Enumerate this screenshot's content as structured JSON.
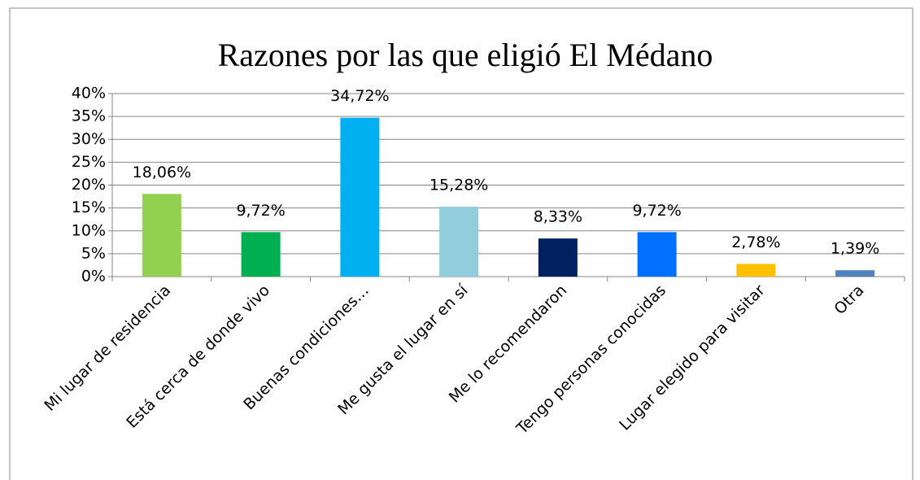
{
  "chart_data": {
    "type": "bar",
    "title": "Razones por las que eligió El Médano",
    "categories": [
      "Mi lugar de residencia",
      "Está cerca de donde vivo",
      "Buenas condiciones…",
      "Me gusta el lugar en sí",
      "Me lo recomendaron",
      "Tengo personas conocidas",
      "Lugar elegido para visitar",
      "Otra"
    ],
    "values": [
      18.06,
      9.72,
      34.72,
      15.28,
      8.33,
      9.72,
      2.78,
      1.39
    ],
    "value_labels": [
      "18,06%",
      "9,72%",
      "34,72%",
      "15,28%",
      "8,33%",
      "9,72%",
      "2,78%",
      "1,39%"
    ],
    "colors": [
      "#92d050",
      "#00b050",
      "#00b0f0",
      "#92cddc",
      "#002060",
      "#0070ff",
      "#ffc000",
      "#4f81bd"
    ],
    "ylim": [
      0,
      40
    ],
    "yticks": [
      {
        "value": 0,
        "label": "0%"
      },
      {
        "value": 5,
        "label": "5%"
      },
      {
        "value": 10,
        "label": "10%"
      },
      {
        "value": 15,
        "label": "15%"
      },
      {
        "value": 20,
        "label": "20%"
      },
      {
        "value": 25,
        "label": "25%"
      },
      {
        "value": 30,
        "label": "30%"
      },
      {
        "value": 35,
        "label": "35%"
      },
      {
        "value": 40,
        "label": "40%"
      }
    ],
    "grid": true
  }
}
